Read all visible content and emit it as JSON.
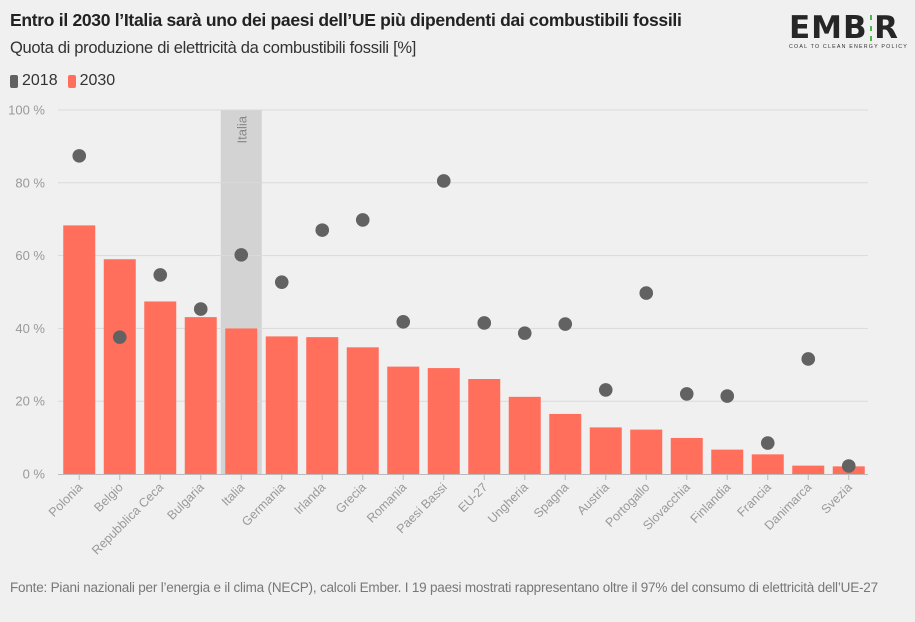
{
  "title": "Entro il 2030 l’Italia sarà uno dei paesi dell’UE più dipendenti dai combustibili fossili",
  "subtitle": "Quota di produzione di elettricità da combustibili fossili [%]",
  "logo": {
    "word_left": "EMB",
    "word_right": "R",
    "tagline": "COAL TO CLEAN ENERGY POLICY",
    "accent": "#4cb848"
  },
  "legend": [
    {
      "label": "2018",
      "color": "#626262"
    },
    {
      "label": "2030",
      "color": "#ff6f5c"
    }
  ],
  "footer": "Fonte: Piani nazionali per l’energia e il clima (NECP), calcoli Ember. I 19 paesi mostrati rappresentano oltre il 97% del consumo di elettricità dell’UE-27",
  "chart_data": {
    "type": "bar",
    "title": "Entro il 2030 l’Italia sarà uno dei paesi dell’UE più dipendenti dai combustibili fossili",
    "subtitle": "Quota di produzione di elettricità da combustibili fossili [%]",
    "xlabel": "",
    "ylabel": "",
    "ylim": [
      0,
      100
    ],
    "yticks": [
      0,
      20,
      40,
      60,
      80,
      100
    ],
    "ytick_labels": [
      "0 %",
      "20 %",
      "40 %",
      "60 %",
      "80 %",
      "100 %"
    ],
    "grid": true,
    "legend_position": "top-left",
    "highlight": {
      "category": "Italia",
      "label": "Italia",
      "color": "#d3d3d3"
    },
    "categories": [
      "Polonia",
      "Belgio",
      "Repubblica Ceca",
      "Bulgaria",
      "Italia",
      "Germania",
      "Irlanda",
      "Grecia",
      "Romania",
      "Paesi Bassi",
      "EU-27",
      "Ungheria",
      "Spagna",
      "Austria",
      "Portogallo",
      "Slovacchia",
      "Finlandia",
      "Francia",
      "Danimarca",
      "Svezia"
    ],
    "series": [
      {
        "name": "2030",
        "type": "bar",
        "color": "#ff6f5c",
        "values": [
          68.3,
          59.0,
          47.4,
          43.1,
          40.0,
          37.8,
          37.6,
          34.8,
          29.5,
          29.1,
          26.1,
          21.2,
          16.5,
          12.8,
          12.2,
          9.9,
          6.7,
          5.4,
          2.3,
          2.1
        ]
      },
      {
        "name": "2018",
        "type": "scatter",
        "color": "#626262",
        "values": [
          87.4,
          37.6,
          54.7,
          45.3,
          60.2,
          52.7,
          67.0,
          69.8,
          41.8,
          80.5,
          41.5,
          38.7,
          41.2,
          23.1,
          49.7,
          22.0,
          21.4,
          8.5,
          31.6,
          2.2
        ]
      }
    ]
  }
}
